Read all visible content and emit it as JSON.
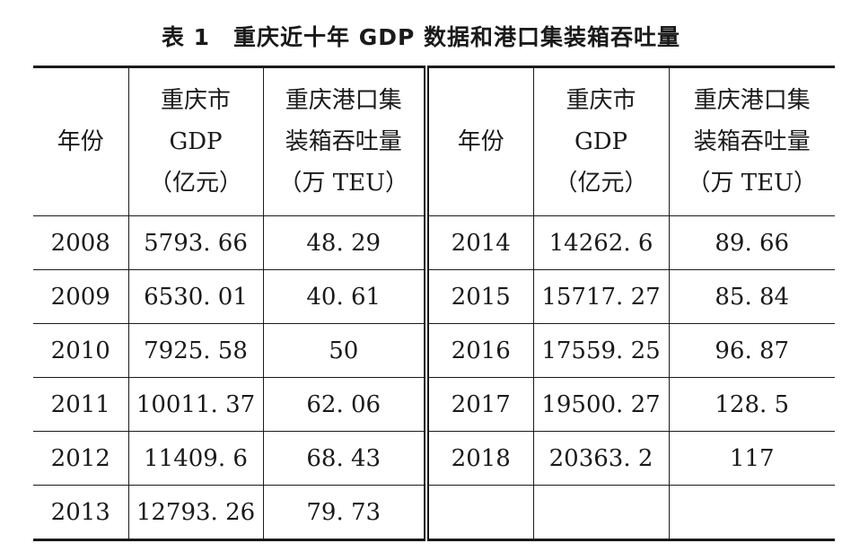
{
  "caption": {
    "number": "表 1",
    "title": "重庆近十年 GDP 数据和港口集装箱吞吐量"
  },
  "headers": {
    "year": "年份",
    "gdp": [
      "重庆市",
      "GDP",
      "（亿元）"
    ],
    "teu": [
      "重庆港口集",
      "装箱吞吐量",
      "（万 TEU）"
    ]
  },
  "left_rows": [
    {
      "year": "2008",
      "gdp": "5793. 66",
      "teu": "48. 29"
    },
    {
      "year": "2009",
      "gdp": "6530. 01",
      "teu": "40. 61"
    },
    {
      "year": "2010",
      "gdp": "7925. 58",
      "teu": "50"
    },
    {
      "year": "2011",
      "gdp": "10011. 37",
      "teu": "62. 06"
    },
    {
      "year": "2012",
      "gdp": "11409. 6",
      "teu": "68. 43"
    },
    {
      "year": "2013",
      "gdp": "12793. 26",
      "teu": "79. 73"
    }
  ],
  "right_rows": [
    {
      "year": "2014",
      "gdp": "14262. 6",
      "teu": "89. 66"
    },
    {
      "year": "2015",
      "gdp": "15717. 27",
      "teu": "85. 84"
    },
    {
      "year": "2016",
      "gdp": "17559. 25",
      "teu": "96. 87"
    },
    {
      "year": "2017",
      "gdp": "19500. 27",
      "teu": "128. 5"
    },
    {
      "year": "2018",
      "gdp": "20363. 2",
      "teu": "117"
    },
    {
      "year": "",
      "gdp": "",
      "teu": ""
    }
  ]
}
